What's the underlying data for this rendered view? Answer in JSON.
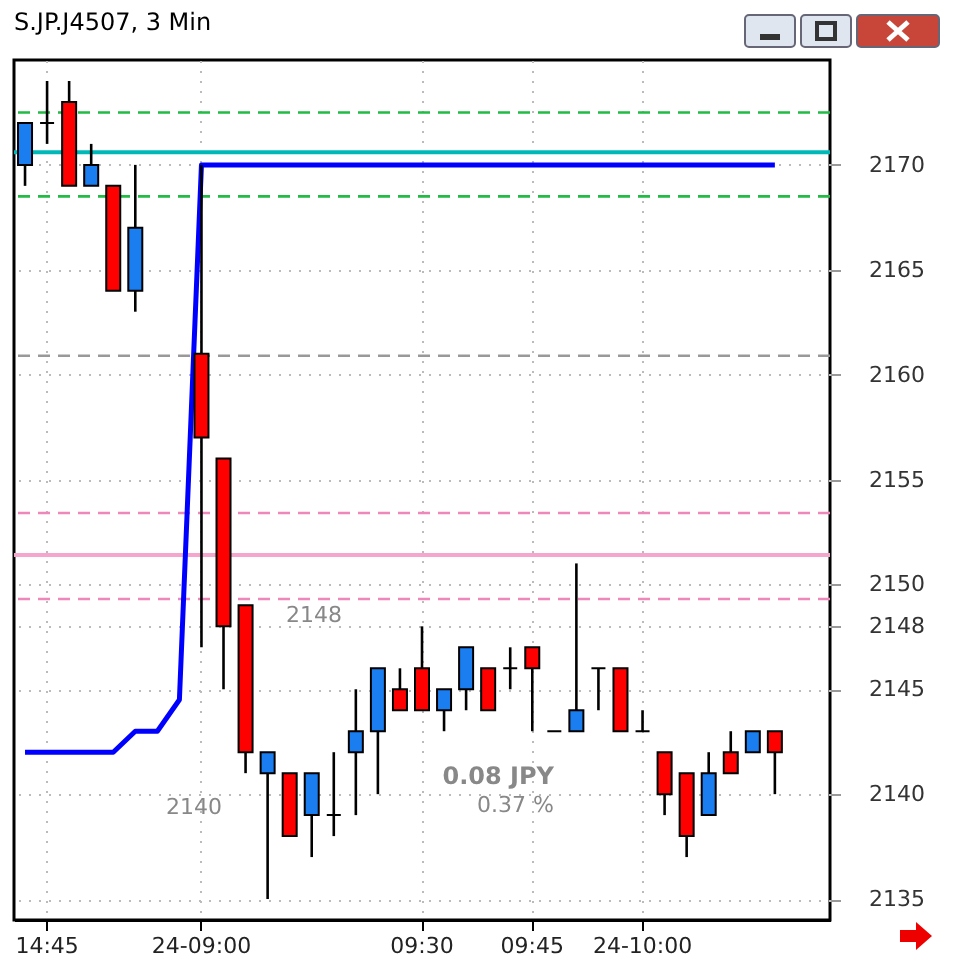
{
  "chart_data": {
    "type": "candlestick",
    "title": "S.JP.J4507, 3 Min",
    "categories": [
      null,
      "14:45",
      null,
      null,
      null,
      null,
      null,
      null,
      "24-09:00",
      null,
      null,
      null,
      null,
      null,
      null,
      null,
      null,
      null,
      "09:30",
      null,
      null,
      null,
      null,
      "09:45",
      null,
      null,
      null,
      null,
      "24-10:00",
      null,
      null,
      null,
      null,
      null,
      null,
      null,
      null
    ],
    "ohlc": [
      [
        2170,
        2172,
        2169,
        2172
      ],
      [
        2172,
        2174,
        2171,
        2172
      ],
      [
        2173,
        2174,
        2169,
        2169
      ],
      [
        2169,
        2171,
        2169,
        2170
      ],
      [
        2169,
        2169,
        2164,
        2164
      ],
      [
        2164,
        2170,
        2163,
        2167
      ],
      null,
      null,
      [
        2161,
        2170,
        2147,
        2157
      ],
      [
        2156,
        2156,
        2145,
        2148
      ],
      [
        2149,
        2149,
        2141,
        2142
      ],
      [
        2141,
        2142,
        2135,
        2142
      ],
      [
        2141,
        2141,
        2138,
        2138
      ],
      [
        2139,
        2141,
        2137,
        2141
      ],
      [
        2139,
        2142,
        2138,
        2139
      ],
      [
        2142,
        2145,
        2139,
        2143
      ],
      [
        2143,
        2146,
        2140,
        2146
      ],
      [
        2145,
        2146,
        2144,
        2144
      ],
      [
        2146,
        2148,
        2144,
        2144
      ],
      [
        2144,
        2145,
        2143,
        2145
      ],
      [
        2145,
        2147,
        2144,
        2147
      ],
      [
        2146,
        2146,
        2144,
        2144
      ],
      [
        2146,
        2147,
        2145,
        2146
      ],
      [
        2147,
        2147,
        2143,
        2146
      ],
      [
        2143,
        2143,
        2143,
        2143
      ],
      [
        2143,
        2151,
        2143,
        2144
      ],
      [
        2146,
        2146,
        2144,
        2146
      ],
      [
        2146,
        2146,
        2143,
        2143
      ],
      [
        2143,
        2144,
        2143,
        2143
      ],
      [
        2142,
        2142,
        2139,
        2140
      ],
      [
        2141,
        2141,
        2137,
        2138
      ],
      [
        2139,
        2142,
        2139,
        2141
      ],
      [
        2142,
        2143,
        2141,
        2141
      ],
      [
        2142,
        2143,
        2142,
        2143
      ],
      [
        2143,
        2143,
        2140,
        2142
      ],
      null,
      null
    ],
    "colors": [
      "#1a7ef0",
      "#000000",
      "#ff0000",
      "#1a7ef0",
      "#ff0000",
      "#1a7ef0",
      null,
      null,
      "#ff0000",
      "#ff0000",
      "#ff0000",
      "#1a7ef0",
      "#ff0000",
      "#1a7ef0",
      "#000000",
      "#1a7ef0",
      "#1a7ef0",
      "#ff0000",
      "#ff0000",
      "#1a7ef0",
      "#1a7ef0",
      "#ff0000",
      "#000000",
      "#ff0000",
      "#000000",
      "#1a7ef0",
      "#000000",
      "#ff0000",
      "#000000",
      "#ff0000",
      "#ff0000",
      "#1a7ef0",
      "#ff0000",
      "#1a7ef0",
      "#ff0000",
      null,
      null
    ],
    "series": [
      {
        "type": "line",
        "color": "#0000ff",
        "values": [
          2142,
          2142,
          2142,
          2142,
          2142,
          2143,
          2143,
          2144.5,
          2170,
          2170,
          2170,
          2170,
          2170,
          2170,
          2170,
          2170,
          2170,
          2170,
          2170,
          2170,
          2170,
          2170,
          2170,
          2170,
          2170,
          2170,
          2170,
          2170,
          2170,
          2170,
          2170,
          2170,
          2170,
          2170,
          2170,
          null,
          null
        ]
      }
    ],
    "ylim": [
      2134,
      2175
    ],
    "yticks": [
      2135,
      2140,
      2145,
      2148,
      2150,
      2155,
      2160,
      2165,
      2170
    ],
    "grid": true,
    "ref_lines": [
      {
        "axis": "y",
        "value": 2172.5,
        "color": "#22bb44",
        "line_style": "dashed"
      },
      {
        "axis": "y",
        "value": 2170.6,
        "color": "#00b8b8",
        "line_style": "solid"
      },
      {
        "axis": "y",
        "value": 2168.5,
        "color": "#22bb44",
        "line_style": "dashed"
      },
      {
        "axis": "y",
        "value": 2160.9,
        "color": "#999999",
        "line_style": "dashed"
      },
      {
        "axis": "y",
        "value": 2153.4,
        "color": "#ee88bb",
        "line_style": "dashed"
      },
      {
        "axis": "y",
        "value": 2151.4,
        "color": "#f4a6cc",
        "line_style": "solid"
      },
      {
        "axis": "y",
        "value": 2149.3,
        "color": "#ee88bb",
        "line_style": "dashed"
      }
    ],
    "annotations": [
      "2148",
      "2140",
      "0.08 JPY",
      "0.37 %"
    ]
  }
}
